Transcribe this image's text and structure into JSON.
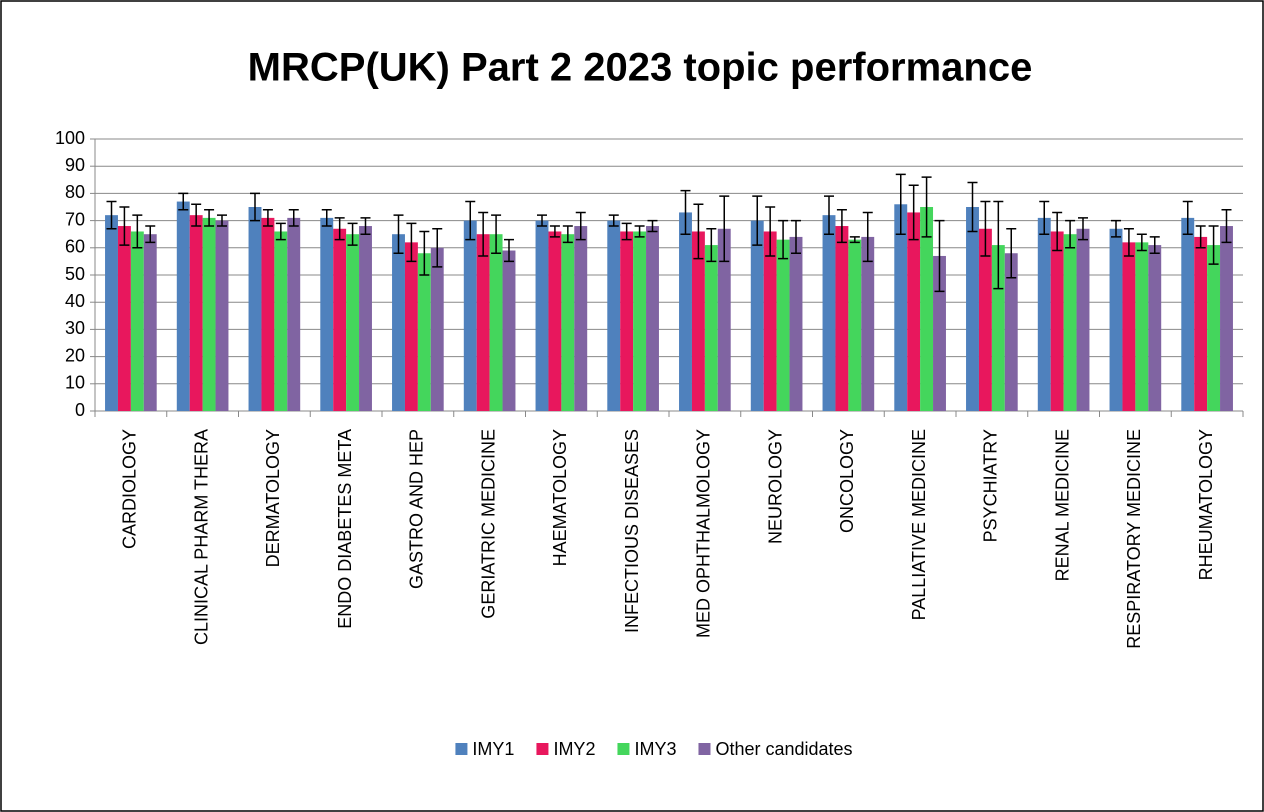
{
  "chart_data": {
    "type": "bar",
    "title": "MRCP(UK) Part 2 2023 topic performance",
    "categories": [
      "CARDIOLOGY",
      "CLINICAL PHARM THERA",
      "DERMATOLOGY",
      "ENDO DIABETES META",
      "GASTRO AND HEP",
      "GERIATRIC MEDICINE",
      "HAEMATOLOGY",
      "INFECTIOUS DISEASES",
      "MED OPHTHALMOLOGY",
      "NEUROLOGY",
      "ONCOLOGY",
      "PALLIATIVE MEDICINE",
      "PSYCHIATRY",
      "RENAL MEDICINE",
      "RESPIRATORY MEDICINE",
      "RHEUMATOLOGY"
    ],
    "series": [
      {
        "name": "IMY1",
        "color": "#4f81bd",
        "values": [
          72,
          77,
          75,
          71,
          65,
          70,
          70,
          70,
          73,
          70,
          72,
          76,
          75,
          71,
          67,
          71
        ],
        "errors": [
          5,
          3,
          5,
          3,
          7,
          7,
          2,
          2,
          8,
          9,
          7,
          11,
          9,
          6,
          3,
          6
        ]
      },
      {
        "name": "IMY2",
        "color": "#e8175d",
        "values": [
          68,
          72,
          71,
          67,
          62,
          65,
          66,
          66,
          66,
          66,
          68,
          73,
          67,
          66,
          62,
          64
        ],
        "errors": [
          7,
          4,
          3,
          4,
          7,
          8,
          2,
          3,
          10,
          9,
          6,
          10,
          10,
          7,
          5,
          4
        ]
      },
      {
        "name": "IMY3",
        "color": "#44d65c",
        "values": [
          66,
          71,
          66,
          65,
          58,
          65,
          65,
          66,
          61,
          63,
          63,
          75,
          61,
          65,
          62,
          61
        ],
        "errors": [
          6,
          3,
          3,
          4,
          8,
          7,
          3,
          2,
          6,
          7,
          1,
          11,
          16,
          5,
          3,
          7
        ]
      },
      {
        "name": "Other candidates",
        "color": "#8064a2",
        "values": [
          65,
          70,
          71,
          68,
          60,
          59,
          68,
          68,
          67,
          64,
          64,
          57,
          58,
          67,
          61,
          68
        ],
        "errors": [
          3,
          2,
          3,
          3,
          7,
          4,
          5,
          2,
          12,
          6,
          9,
          13,
          9,
          4,
          3,
          6
        ]
      }
    ],
    "ylim": [
      0,
      100
    ],
    "yticks": [
      0,
      10,
      20,
      30,
      40,
      50,
      60,
      70,
      80,
      90,
      100
    ],
    "grid": true,
    "legend": "bottom"
  }
}
